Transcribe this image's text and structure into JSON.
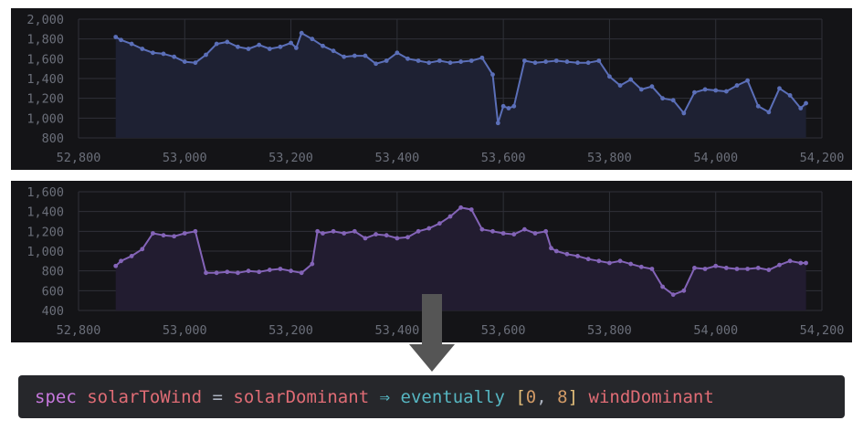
{
  "chart_data": [
    {
      "type": "line",
      "area": true,
      "color": "#5b6fb8",
      "fill": "#1e2133",
      "xlim": [
        52800,
        54200
      ],
      "ylim": [
        800,
        2000
      ],
      "x_ticks": [
        52800,
        53000,
        53200,
        53400,
        53600,
        53800,
        54000,
        54200
      ],
      "x_tick_labels": [
        "52,800",
        "53,000",
        "53,200",
        "53,400",
        "53,600",
        "53,800",
        "54,000",
        "54,200"
      ],
      "y_ticks": [
        800,
        1000,
        1200,
        1400,
        1600,
        1800,
        2000
      ],
      "y_tick_labels": [
        "800",
        "1,000",
        "1,200",
        "1,400",
        "1,600",
        "1,800",
        "2,000"
      ],
      "grid": true,
      "series": [
        {
          "x": [
            52870,
            52880,
            52900,
            52920,
            52940,
            52960,
            52980,
            53000,
            53020,
            53040,
            53060,
            53080,
            53100,
            53120,
            53140,
            53160,
            53180,
            53200,
            53210,
            53220,
            53240,
            53260,
            53280,
            53300,
            53320,
            53340,
            53360,
            53380,
            53400,
            53420,
            53440,
            53460,
            53480,
            53500,
            53520,
            53540,
            53560,
            53580,
            53590,
            53600,
            53610,
            53620,
            53640,
            53660,
            53680,
            53700,
            53720,
            53740,
            53760,
            53780,
            53800,
            53820,
            53840,
            53860,
            53880,
            53900,
            53920,
            53940,
            53960,
            53980,
            54000,
            54020,
            54040,
            54060,
            54080,
            54100,
            54120,
            54140,
            54160,
            54170
          ],
          "values": [
            1820,
            1790,
            1750,
            1700,
            1660,
            1650,
            1620,
            1570,
            1560,
            1640,
            1750,
            1770,
            1720,
            1700,
            1740,
            1700,
            1720,
            1760,
            1710,
            1860,
            1800,
            1730,
            1680,
            1620,
            1630,
            1630,
            1550,
            1580,
            1660,
            1600,
            1580,
            1560,
            1580,
            1560,
            1570,
            1580,
            1610,
            1440,
            950,
            1120,
            1100,
            1120,
            1580,
            1560,
            1570,
            1580,
            1570,
            1560,
            1560,
            1580,
            1420,
            1330,
            1390,
            1290,
            1320,
            1200,
            1180,
            1050,
            1260,
            1290,
            1280,
            1270,
            1330,
            1380,
            1120,
            1060,
            1300,
            1230,
            1100,
            1150
          ]
        }
      ]
    },
    {
      "type": "line",
      "area": true,
      "color": "#8464b8",
      "fill": "#221c30",
      "xlim": [
        52800,
        54200
      ],
      "ylim": [
        400,
        1600
      ],
      "x_ticks": [
        52800,
        53000,
        53200,
        53400,
        53600,
        53800,
        54000,
        54200
      ],
      "x_tick_labels": [
        "52,800",
        "53,000",
        "53,200",
        "53,400",
        "53,600",
        "53,800",
        "54,000",
        "54,200"
      ],
      "y_ticks": [
        400,
        600,
        800,
        1000,
        1200,
        1400,
        1600
      ],
      "y_tick_labels": [
        "400",
        "600",
        "800",
        "1,000",
        "1,200",
        "1,400",
        "1,600"
      ],
      "grid": true,
      "series": [
        {
          "x": [
            52870,
            52880,
            52900,
            52920,
            52940,
            52960,
            52980,
            53000,
            53020,
            53040,
            53060,
            53080,
            53100,
            53120,
            53140,
            53160,
            53180,
            53200,
            53220,
            53240,
            53250,
            53260,
            53280,
            53300,
            53320,
            53340,
            53360,
            53380,
            53400,
            53420,
            53440,
            53460,
            53480,
            53500,
            53520,
            53540,
            53560,
            53580,
            53600,
            53620,
            53640,
            53660,
            53680,
            53690,
            53700,
            53720,
            53740,
            53760,
            53780,
            53800,
            53820,
            53840,
            53860,
            53880,
            53900,
            53920,
            53940,
            53960,
            53980,
            54000,
            54020,
            54040,
            54060,
            54080,
            54100,
            54120,
            54140,
            54160,
            54170
          ],
          "values": [
            850,
            900,
            950,
            1020,
            1180,
            1160,
            1150,
            1180,
            1200,
            780,
            780,
            790,
            780,
            800,
            790,
            810,
            820,
            800,
            780,
            870,
            1200,
            1180,
            1200,
            1180,
            1200,
            1130,
            1170,
            1160,
            1130,
            1140,
            1200,
            1230,
            1280,
            1350,
            1440,
            1420,
            1220,
            1200,
            1180,
            1170,
            1220,
            1180,
            1200,
            1030,
            1000,
            970,
            950,
            920,
            900,
            880,
            900,
            870,
            840,
            820,
            640,
            560,
            600,
            830,
            820,
            850,
            830,
            820,
            820,
            830,
            810,
            860,
            900,
            880,
            880
          ]
        }
      ]
    }
  ],
  "spec": {
    "keyword": "spec",
    "name": "solarToWind",
    "equals": "=",
    "lhs": "solarDominant",
    "implies": "⇒",
    "temporal": "eventually",
    "lbracket": "[",
    "lower": "0",
    "comma": ",",
    "upper": "8",
    "rbracket": "]",
    "rhs": "windDominant"
  },
  "colors": {
    "panel_bg": "#141417",
    "arrow": "#555555",
    "spec_bg": "#26272b"
  }
}
